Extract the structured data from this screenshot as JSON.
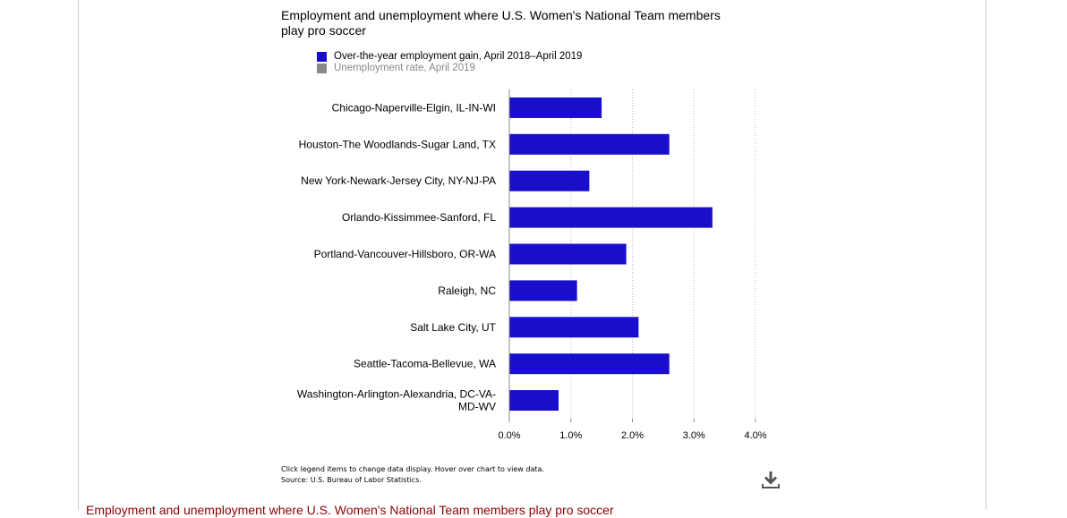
{
  "chart_data": {
    "type": "bar",
    "orientation": "horizontal",
    "title": "Employment and unemployment where U.S. Women's National Team members play pro soccer",
    "categories": [
      "Chicago-Naperville-Elgin, IL-IN-WI",
      "Houston-The Woodlands-Sugar Land, TX",
      "New York-Newark-Jersey City, NY-NJ-PA",
      "Orlando-Kissimmee-Sanford, FL",
      "Portland-Vancouver-Hillsboro, OR-WA",
      "Raleigh, NC",
      "Salt Lake City, UT",
      "Seattle-Tacoma-Bellevue, WA",
      "Washington-Arlington-Alexandria, DC-VA-MD-WV"
    ],
    "series": [
      {
        "name": "Over-the-year employment gain, April 2018–April 2019",
        "color": "#1a0ecd",
        "active": true,
        "values": [
          1.5,
          2.6,
          1.3,
          3.3,
          1.9,
          1.1,
          2.1,
          2.6,
          0.8
        ]
      },
      {
        "name": "Unemployment rate, April 2019",
        "color": "#888888",
        "active": false
      }
    ],
    "xlim": [
      0,
      4
    ],
    "xticks": [
      "0.0%",
      "1.0%",
      "2.0%",
      "3.0%",
      "4.0%"
    ],
    "grid": true,
    "legend_position": "top-left"
  },
  "footnote": {
    "line1": "Click legend items to change data display. Hover over chart to view data.",
    "line2": "Source: U.S. Bureau of Labor Statistics."
  },
  "download_icon": "download-icon",
  "next_title": "Employment and unemployment where U.S. Women's National Team members play pro soccer"
}
